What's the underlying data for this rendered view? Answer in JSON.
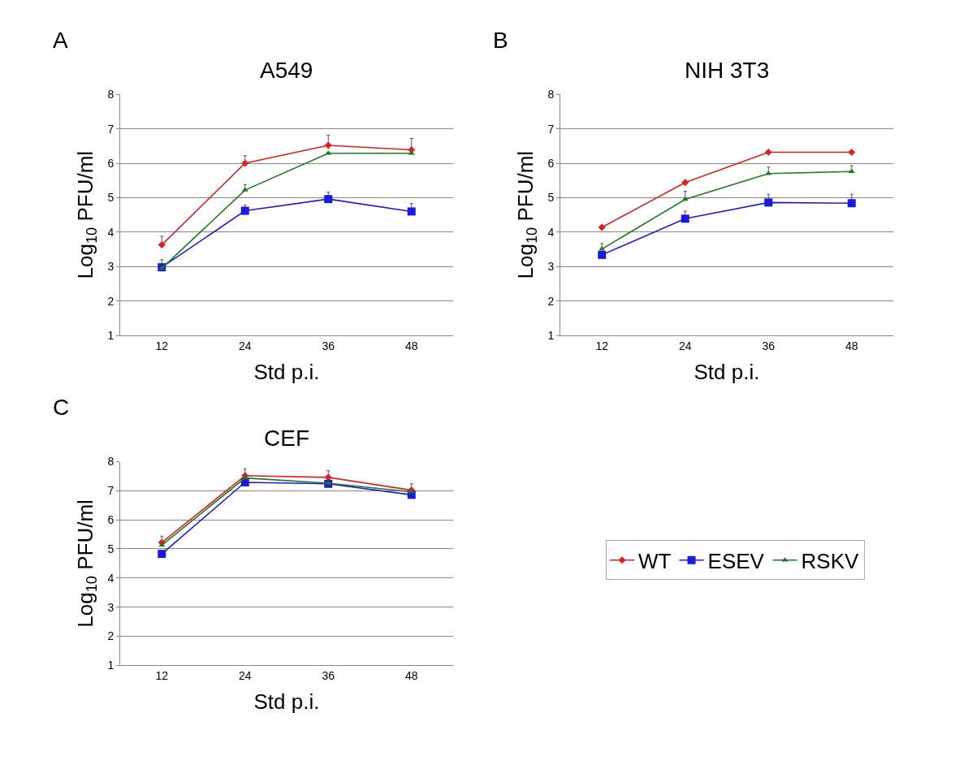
{
  "chart_data": [
    {
      "type": "line",
      "title": "A549",
      "annotations": [
        "A"
      ],
      "xlabel": "Std p.i.",
      "ylabel": "Log$_{10}$ PFU/ml",
      "categories": [
        "12",
        "24",
        "36",
        "48"
      ],
      "ylim": [
        1,
        8
      ],
      "yticks": [
        1,
        2,
        3,
        4,
        5,
        6,
        7,
        8
      ],
      "grid": "y",
      "legend": "right",
      "series": [
        {
          "name": "WT",
          "color": "#e02020",
          "marker": "diamond",
          "values": [
            3.63,
            6.0,
            6.52,
            6.39
          ],
          "errors": [
            [
              3.63,
              3.88
            ],
            [
              6.0,
              6.22
            ],
            [
              6.52,
              6.81
            ],
            [
              6.39,
              6.72
            ]
          ]
        },
        {
          "name": "ESEV",
          "color": "#1a1ad8",
          "marker": "square",
          "values": [
            2.98,
            4.62,
            4.96,
            4.6
          ],
          "errors": [
            [
              2.98,
              3.2
            ],
            [
              4.62,
              4.78
            ],
            [
              4.96,
              5.16
            ],
            [
              4.6,
              4.83
            ]
          ]
        },
        {
          "name": "RSKV",
          "color": "#1e7a1e",
          "marker": "triangle",
          "values": [
            2.95,
            5.22,
            6.29,
            6.29
          ],
          "errors": [
            null,
            [
              5.22,
              5.38
            ],
            null,
            null
          ]
        }
      ]
    },
    {
      "type": "line",
      "title": "NIH 3T3",
      "annotations": [
        "B"
      ],
      "xlabel": "Std p.i.",
      "ylabel": "Log$_{10}$ PFU/ml",
      "categories": [
        "12",
        "24",
        "36",
        "48"
      ],
      "ylim": [
        1,
        8
      ],
      "yticks": [
        1,
        2,
        3,
        4,
        5,
        6,
        7,
        8
      ],
      "grid": "y",
      "legend": "right",
      "series": [
        {
          "name": "WT",
          "color": "#e02020",
          "marker": "diamond",
          "values": [
            4.14,
            5.44,
            6.32,
            6.32
          ]
        },
        {
          "name": "ESEV",
          "color": "#1a1ad8",
          "marker": "square",
          "values": [
            3.34,
            4.39,
            4.86,
            4.84
          ],
          "errors": [
            null,
            [
              4.39,
              4.61
            ],
            [
              4.86,
              5.1
            ],
            [
              4.84,
              5.1
            ]
          ]
        },
        {
          "name": "RSKV",
          "color": "#1e7a1e",
          "marker": "triangle",
          "values": [
            3.51,
            4.95,
            5.7,
            5.76
          ],
          "errors": [
            [
              3.51,
              3.67
            ],
            [
              4.95,
              5.19
            ],
            [
              5.7,
              5.89
            ],
            [
              5.76,
              5.93
            ]
          ]
        }
      ]
    },
    {
      "type": "line",
      "title": "CEF",
      "annotations": [
        "C"
      ],
      "xlabel": "Std p.i.",
      "ylabel": "Log$_{10}$ PFU/ml",
      "categories": [
        "12",
        "24",
        "36",
        "48"
      ],
      "ylim": [
        1,
        8
      ],
      "yticks": [
        1,
        2,
        3,
        4,
        5,
        6,
        7,
        8
      ],
      "grid": "y",
      "legend": "right",
      "series": [
        {
          "name": "WT",
          "color": "#e02020",
          "marker": "diamond",
          "values": [
            5.22,
            7.52,
            7.46,
            7.02
          ],
          "errors": [
            [
              5.22,
              5.44
            ],
            [
              7.52,
              7.75
            ],
            [
              7.46,
              7.69
            ],
            [
              7.02,
              7.24
            ]
          ]
        },
        {
          "name": "ESEV",
          "color": "#1a1ad8",
          "marker": "square",
          "values": [
            4.83,
            7.29,
            7.24,
            6.86
          ]
        },
        {
          "name": "RSKV",
          "color": "#1e7a1e",
          "marker": "triangle",
          "values": [
            5.13,
            7.44,
            7.26,
            6.96
          ]
        }
      ]
    }
  ]
}
